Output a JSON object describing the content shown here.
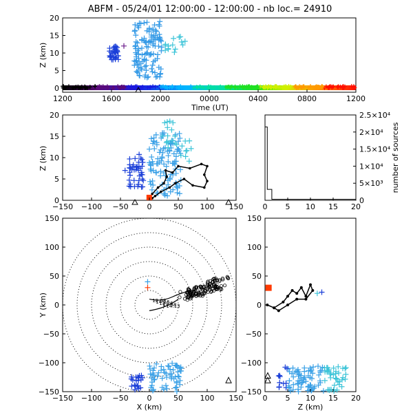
{
  "chart_data": [
    {
      "type": "scatter",
      "panel": "time-height",
      "title": "ABFM - 05/24/01 12:00:00 - 12:00:00 - nb loc.= 24910",
      "xlabel": "Time (UT)",
      "ylabel": "Z (km)",
      "x_ticks": [
        "1200",
        "1600",
        "2000",
        "0000",
        "0400",
        "0800",
        "1200"
      ],
      "y_ticks": [
        "0",
        "5",
        "10",
        "15",
        "20"
      ],
      "ylim": [
        0,
        20
      ],
      "colorbar": "rainbow, time-coded",
      "marker": "+",
      "clusters": [
        {
          "x_range": [
            -42,
            -28
          ],
          "z_range": [
            8,
            12
          ],
          "color": "#1a3ed8",
          "count": 35
        },
        {
          "x_range": [
            -5,
            35
          ],
          "z_range": [
            3,
            19
          ],
          "color": "#3399e6",
          "count": 120
        },
        {
          "x_range": [
            40,
            70
          ],
          "z_range": [
            8,
            16
          ],
          "color": "#3cc4d8",
          "count": 15
        }
      ]
    },
    {
      "type": "scatter",
      "panel": "x-z",
      "ylabel": "Z (km)",
      "xlim": [
        -150,
        150
      ],
      "ylim": [
        0,
        20
      ],
      "x_ticks": [
        "−150",
        "−100",
        "−50",
        "0",
        "50",
        "100",
        "150"
      ],
      "y_ticks": [
        "0",
        "5",
        "10",
        "15",
        "20"
      ],
      "stations_x": [
        -25,
        137
      ],
      "track": [
        [
          0,
          0.5
        ],
        [
          5,
          1.5
        ],
        [
          15,
          3
        ],
        [
          25,
          4
        ],
        [
          30,
          5.5
        ],
        [
          28,
          7
        ],
        [
          40,
          6.5
        ],
        [
          50,
          8
        ],
        [
          70,
          7.5
        ],
        [
          90,
          8.5
        ],
        [
          100,
          8
        ],
        [
          95,
          6
        ],
        [
          100,
          4.5
        ],
        [
          95,
          3
        ],
        [
          75,
          3.5
        ],
        [
          60,
          5
        ],
        [
          45,
          4
        ],
        [
          35,
          3
        ],
        [
          20,
          2
        ],
        [
          10,
          1
        ],
        [
          5,
          0.5
        ]
      ]
    },
    {
      "type": "bar",
      "panel": "height-histogram",
      "ylabel": "number of sources",
      "xlim": [
        0,
        20
      ],
      "ylim": [
        0,
        25000
      ],
      "x_ticks": [
        "0",
        "5",
        "10",
        "15",
        "20"
      ],
      "y_ticks": [
        "0",
        "5×10³",
        "1×10⁴",
        "1.5×10⁴",
        "2×10⁴",
        "2.5×10⁴"
      ],
      "bins": [
        [
          0,
          0.5,
          21500
        ],
        [
          0.5,
          1.5,
          3200
        ],
        [
          1.5,
          20,
          300
        ]
      ]
    },
    {
      "type": "scatter",
      "panel": "plan-view",
      "xlabel": "X (km)",
      "ylabel": "Y (km)",
      "xlim": [
        -150,
        150
      ],
      "ylim": [
        -150,
        150
      ],
      "x_ticks": [
        "−150",
        "−100",
        "−50",
        "0",
        "50",
        "100",
        "150"
      ],
      "y_ticks": [
        "−150",
        "−100",
        "−50",
        "0",
        "50",
        "100",
        "150"
      ],
      "range_rings_km": [
        25,
        50,
        75,
        100,
        125,
        150
      ],
      "station_xy": [
        137,
        -130
      ],
      "trace_labels": [
        "12:58",
        "14:16",
        "12:26",
        "13:58",
        "14:13"
      ]
    },
    {
      "type": "scatter",
      "panel": "z-y",
      "xlabel": "Z (km)",
      "xlim": [
        0,
        20
      ],
      "ylim": [
        -150,
        150
      ],
      "x_ticks": [
        "0",
        "5",
        "10",
        "15",
        "20"
      ],
      "y_ticks": [
        "−150",
        "−100",
        "−50",
        "0",
        "50",
        "100",
        "150"
      ]
    }
  ]
}
